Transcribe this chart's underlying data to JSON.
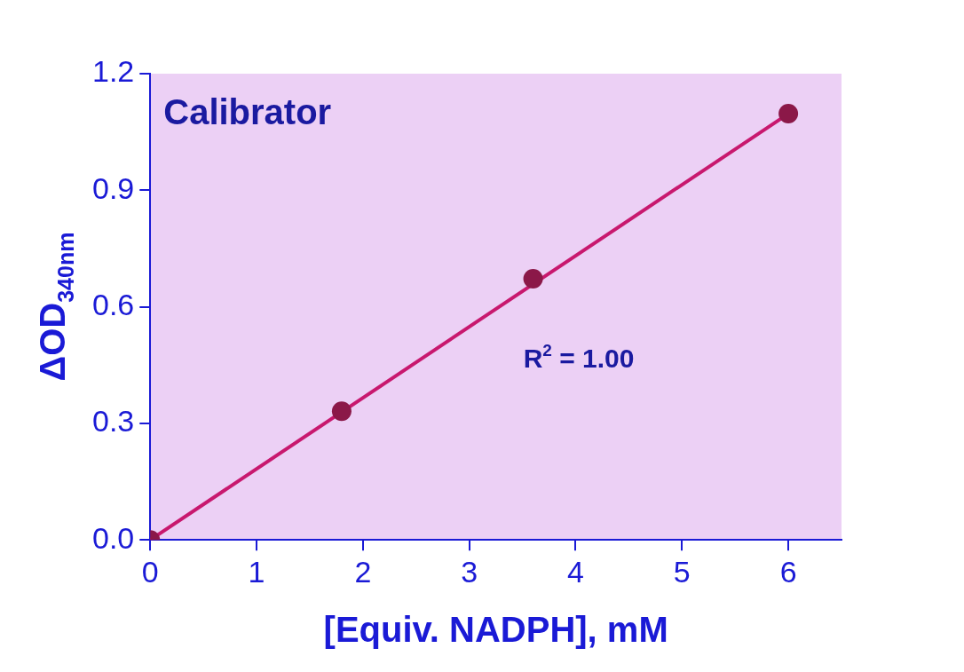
{
  "chart_data": {
    "type": "scatter",
    "title": "Calibrator",
    "xlabel": "[Equiv. NADPH], mM",
    "ylabel": "ΔOD$_{340nm}$",
    "annotations": [
      "R$^{2}$ = 1.00"
    ],
    "xlim": [
      0,
      6.5
    ],
    "xticks": [
      0,
      1,
      2,
      3,
      4,
      5,
      6
    ],
    "ylim": [
      0,
      1.2
    ],
    "yticks": [
      {
        "value": 0,
        "label": "0.0"
      },
      {
        "value": 0.3,
        "label": "0.3"
      },
      {
        "value": 0.6,
        "label": "0.6"
      },
      {
        "value": 0.9,
        "label": "0.9"
      },
      {
        "value": 1.2,
        "label": "1.2"
      }
    ],
    "grid": false,
    "legend": false,
    "series": [
      {
        "type": "scatter",
        "color": "#8b1848",
        "marker": "circle",
        "x": [
          0,
          1.8,
          3.6,
          6
        ],
        "values": [
          0,
          0.331,
          0.672,
          1.097
        ]
      },
      {
        "type": "line",
        "color": "#c8186e",
        "marker": "none",
        "line_style": "solid",
        "x": [
          0,
          6
        ],
        "values": [
          0,
          1.097
        ]
      }
    ]
  }
}
